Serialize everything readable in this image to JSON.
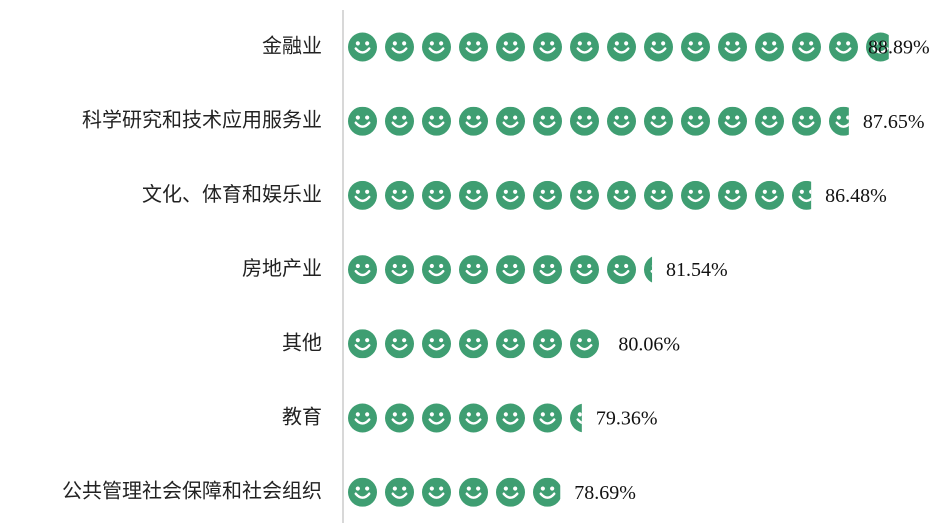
{
  "chart_data": {
    "type": "pictorial_bar",
    "categories": [
      "金融业",
      "科学研究和技术应用服务业",
      "文化、体育和娱乐业",
      "房地产业",
      "其他",
      "教育",
      "公共管理社会保障和社会组织"
    ],
    "values": [
      88.89,
      87.65,
      86.48,
      81.54,
      80.06,
      79.36,
      78.69
    ],
    "value_labels": [
      "88.89%",
      "87.65%",
      "86.48%",
      "81.54%",
      "80.06%",
      "79.36%",
      "78.69%"
    ],
    "color": "#3f9e72",
    "xlim": [
      72.1,
      90.17
    ]
  }
}
